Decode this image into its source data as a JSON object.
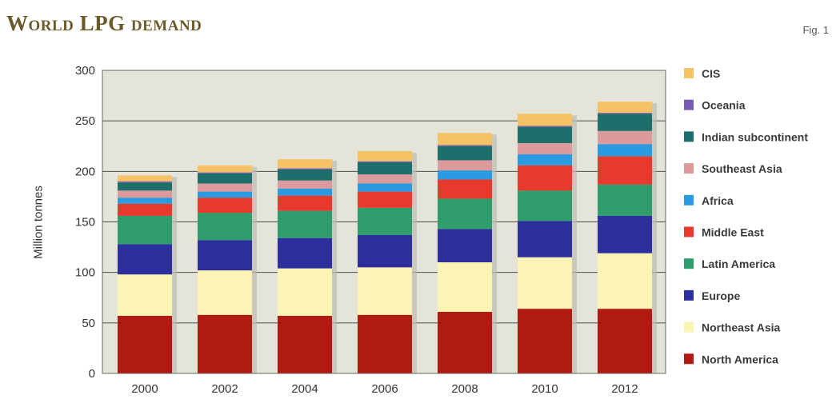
{
  "title": "World LPG demand",
  "fig_label": "Fig. 1",
  "colors": {
    "plot_bg": "#e5e4d9",
    "grid": "#4d4d4d",
    "title": "#6b5a2a"
  },
  "chart_data": {
    "type": "bar",
    "stacked": true,
    "title": "World LPG demand",
    "xlabel": "",
    "ylabel": "Million tonnes",
    "categories": [
      "2000",
      "2002",
      "2004",
      "2006",
      "2008",
      "2010",
      "2012"
    ],
    "ylim": [
      0,
      300
    ],
    "yticks": [
      0,
      50,
      100,
      150,
      200,
      250,
      300
    ],
    "grid": true,
    "legend_position": "right",
    "series": [
      {
        "name": "North America",
        "color": "#b01a12",
        "values": [
          57,
          58,
          57,
          58,
          61,
          64,
          64
        ]
      },
      {
        "name": "Northeast Asia",
        "color": "#fbf4b4",
        "values": [
          41,
          44,
          47,
          47,
          49,
          51,
          55
        ]
      },
      {
        "name": "Europe",
        "color": "#2e2f9e",
        "values": [
          30,
          30,
          30,
          32,
          33,
          36,
          37
        ]
      },
      {
        "name": "Latin America",
        "color": "#2f9e6c",
        "values": [
          28,
          27,
          27,
          27,
          30,
          30,
          31
        ]
      },
      {
        "name": "Middle East",
        "color": "#e8392f",
        "values": [
          12,
          15,
          15,
          16,
          19,
          25,
          28
        ]
      },
      {
        "name": "Africa",
        "color": "#2a9be0",
        "values": [
          6,
          6,
          7,
          8,
          9,
          11,
          12
        ]
      },
      {
        "name": "Southeast Asia",
        "color": "#dc9a9c",
        "values": [
          7,
          8,
          8,
          9,
          10,
          11,
          13
        ]
      },
      {
        "name": "Indian subcontinent",
        "color": "#1e6f6c",
        "values": [
          8,
          10,
          11,
          12,
          14,
          16,
          17
        ]
      },
      {
        "name": "Oceania",
        "color": "#7a5bb4",
        "values": [
          1,
          1,
          1,
          1,
          1,
          1,
          1
        ]
      },
      {
        "name": "CIS",
        "color": "#f6c266",
        "values": [
          6,
          7,
          9,
          10,
          12,
          12,
          11
        ]
      }
    ]
  }
}
